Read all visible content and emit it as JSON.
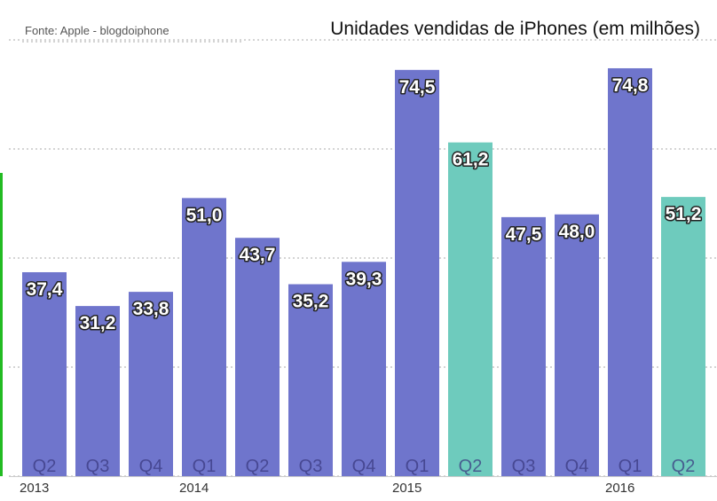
{
  "source": "Fonte: Apple - blogdoiphone",
  "colors": {
    "regular": "#6f75cc",
    "highlight": "#6ecbbd",
    "gridline": "#aaaaaa",
    "edge_green": "#22bb22"
  },
  "chart_data": {
    "type": "bar",
    "title": "Unidades vendidas de iPhones (em milhões)",
    "xlabel": "",
    "ylabel": "",
    "ylim": [
      0,
      80
    ],
    "grid": true,
    "categories": [
      "Q2",
      "Q3",
      "Q4",
      "Q1",
      "Q2",
      "Q3",
      "Q4",
      "Q1",
      "Q2",
      "Q3",
      "Q4",
      "Q1",
      "Q2"
    ],
    "values": [
      37.4,
      31.2,
      33.8,
      51.0,
      43.7,
      35.2,
      39.3,
      74.5,
      61.2,
      47.5,
      48.0,
      74.8,
      51.2
    ],
    "value_labels": [
      "37,4",
      "31,2",
      "33,8",
      "51,0",
      "43,7",
      "35,2",
      "39,3",
      "74,5",
      "61,2",
      "47,5",
      "48,0",
      "74,8",
      "51,2"
    ],
    "highlighted": [
      false,
      false,
      false,
      false,
      false,
      false,
      false,
      false,
      true,
      false,
      false,
      false,
      true
    ],
    "years": [
      {
        "label": "2013",
        "bar_index": 0
      },
      {
        "label": "2014",
        "bar_index": 3
      },
      {
        "label": "2015",
        "bar_index": 7
      },
      {
        "label": "2016",
        "bar_index": 11
      }
    ]
  }
}
